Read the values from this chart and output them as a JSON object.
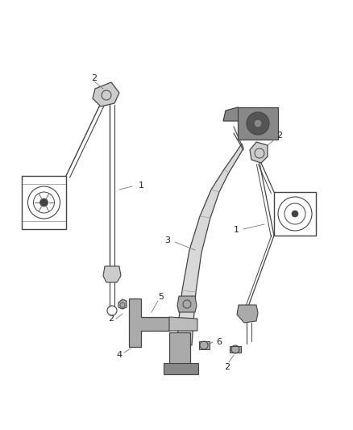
{
  "bg_color": "#ffffff",
  "lc": "#444444",
  "fig_width": 4.38,
  "fig_height": 5.33,
  "dpi": 100
}
